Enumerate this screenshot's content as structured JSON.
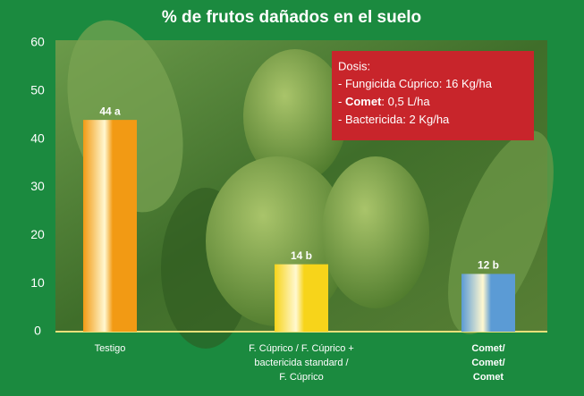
{
  "chart_data": {
    "type": "bar",
    "title": "%  de frutos dañados en el suelo",
    "categories": [
      [
        "Testigo"
      ],
      [
        "F. Cúprico / F. Cúprico +",
        "bactericida standard /",
        "F. Cúprico"
      ],
      [
        "Comet/",
        "Comet/",
        "Comet"
      ]
    ],
    "values": [
      44,
      14,
      12
    ],
    "value_labels": [
      "44 a",
      "14 b",
      "12 b"
    ],
    "colors": [
      "#f29a14",
      "#f7d41a",
      "#5b9bd5"
    ],
    "ylim": [
      0,
      60
    ],
    "yticks": [
      0,
      10,
      20,
      30,
      40,
      50,
      60
    ],
    "grid": false,
    "annotation": {
      "title": "Dosis:",
      "lines": [
        [
          "- Fungicida Cúprico: 16 Kg/ha"
        ],
        [
          "- ",
          "Comet",
          ": 0,5 L/ha"
        ],
        [
          "- Bactericida: 2 Kg/ha"
        ]
      ]
    }
  }
}
